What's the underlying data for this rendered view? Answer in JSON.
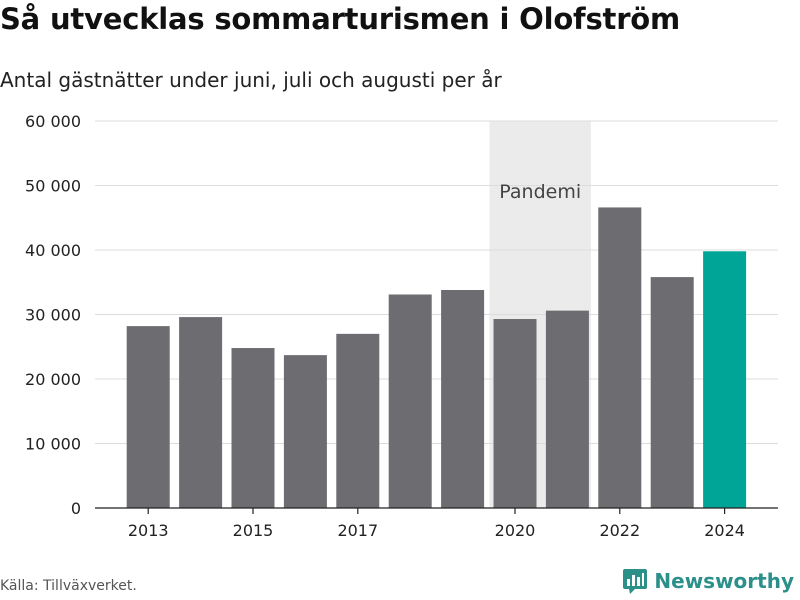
{
  "header": {
    "title": "Så utvecklas sommarturismen i Olofström",
    "subtitle": "Antal gästnätter under juni, juli och augusti per år"
  },
  "footer": {
    "source": "Källa: Tillväxverket.",
    "brand": "Newsworthy",
    "brand_icon": "newsworthy-logo-icon"
  },
  "colors": {
    "bar": "#6d6c70",
    "highlight": "#00a598",
    "shade": "#ebebeb",
    "grid": "#dcdcdc",
    "brand": "#2b8f8a"
  },
  "chart_data": {
    "type": "bar",
    "categories": [
      2013,
      2014,
      2015,
      2016,
      2017,
      2018,
      2019,
      2020,
      2021,
      2022,
      2023,
      2024
    ],
    "values": [
      28200,
      29600,
      24800,
      23700,
      27000,
      33100,
      33800,
      29300,
      30600,
      46600,
      35800,
      39800
    ],
    "highlight_category": 2024,
    "x_tick_labels": [
      "2013",
      "2015",
      "2017",
      "2020",
      "2022",
      "2024"
    ],
    "y_ticks": [
      0,
      10000,
      20000,
      30000,
      40000,
      50000,
      60000
    ],
    "y_tick_labels": [
      "0",
      "10 000",
      "20 000",
      "30 000",
      "40 000",
      "50 000",
      "60 000"
    ],
    "ylim": [
      0,
      60000
    ],
    "grid": true,
    "annotation": {
      "label": "Pandemi",
      "from_category": 2020,
      "to_category": 2021
    }
  }
}
